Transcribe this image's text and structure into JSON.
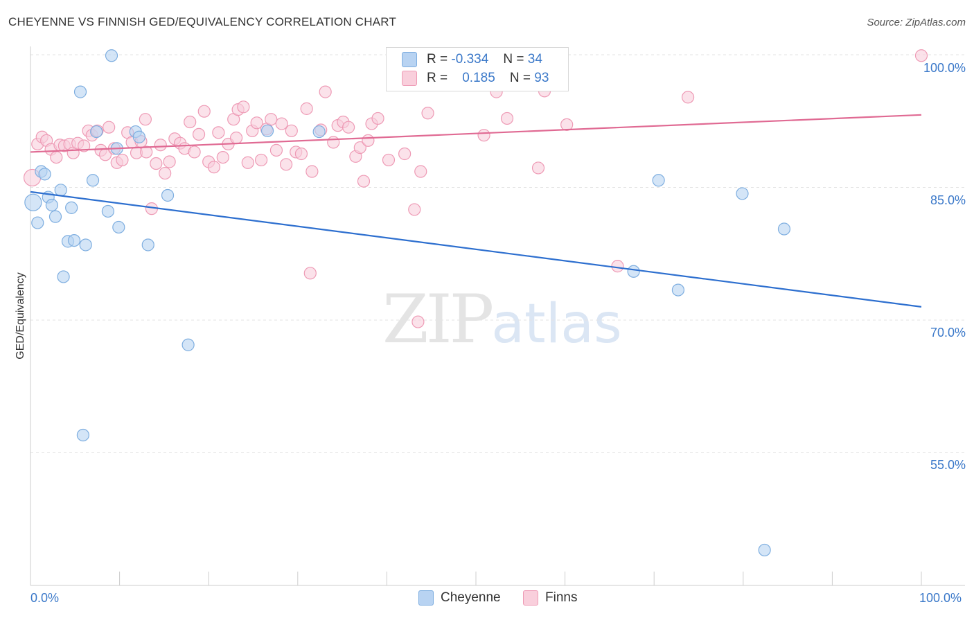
{
  "header": {
    "title": "CHEYENNE VS FINNISH GED/EQUIVALENCY CORRELATION CHART",
    "source": "Source: ZipAtlas.com"
  },
  "legend": {
    "r_label": "R =",
    "n_label": "N =",
    "cheyenne": {
      "r": "-0.334",
      "n": "34"
    },
    "finns": {
      "r": "0.185",
      "n": "93"
    }
  },
  "bottom_legend": {
    "cheyenne": "Cheyenne",
    "finns": "Finns"
  },
  "watermark": {
    "zip": "ZIP",
    "atlas": "atlas"
  },
  "colors": {
    "cheyenne_fill": "#b8d3f2",
    "cheyenne_stroke": "#7eaee0",
    "cheyenne_line": "#2d6fcf",
    "finns_fill": "#f9cfdc",
    "finns_stroke": "#ee9ab5",
    "finns_line": "#e06a93",
    "tick_text": "#3a78c9",
    "grid": "#e3e3e3"
  },
  "chart_data": {
    "type": "scatter",
    "title": "CHEYENNE VS FINNISH GED/EQUIVALENCY CORRELATION CHART",
    "xlabel": "",
    "ylabel": "GED/Equivalency",
    "xlim": [
      0,
      100
    ],
    "ylim": [
      40,
      101
    ],
    "x_tick_labels": [
      "0.0%",
      "100.0%"
    ],
    "y_ticks": [
      55,
      70,
      85,
      100
    ],
    "y_tick_labels": [
      "55.0%",
      "70.0%",
      "85.0%",
      "100.0%"
    ],
    "grid": true,
    "legend_position": "top-center",
    "series": [
      {
        "name": "Cheyenne",
        "trend": {
          "x": [
            0,
            100
          ],
          "y": [
            84.5,
            71.5
          ]
        },
        "points": [
          [
            0.3,
            83.3
          ],
          [
            0.8,
            81.0
          ],
          [
            1.2,
            86.8
          ],
          [
            1.6,
            86.5
          ],
          [
            2.0,
            83.9
          ],
          [
            2.4,
            83.0
          ],
          [
            2.8,
            81.7
          ],
          [
            3.4,
            84.7
          ],
          [
            3.7,
            74.9
          ],
          [
            4.2,
            78.9
          ],
          [
            4.6,
            82.7
          ],
          [
            4.9,
            79.0
          ],
          [
            5.6,
            95.8
          ],
          [
            6.2,
            78.5
          ],
          [
            7.0,
            85.8
          ],
          [
            7.4,
            91.3
          ],
          [
            8.7,
            82.3
          ],
          [
            9.1,
            99.9
          ],
          [
            9.7,
            89.4
          ],
          [
            9.9,
            80.5
          ],
          [
            11.8,
            91.3
          ],
          [
            12.2,
            90.7
          ],
          [
            13.2,
            78.5
          ],
          [
            15.4,
            84.1
          ],
          [
            17.7,
            67.2
          ],
          [
            26.6,
            91.4
          ],
          [
            32.4,
            91.3
          ],
          [
            70.5,
            85.8
          ],
          [
            67.7,
            75.5
          ],
          [
            72.7,
            73.4
          ],
          [
            79.9,
            84.3
          ],
          [
            84.6,
            80.3
          ],
          [
            82.4,
            44.0
          ],
          [
            5.9,
            57.0
          ]
        ]
      },
      {
        "name": "Finns",
        "trend": {
          "x": [
            0,
            100
          ],
          "y": [
            89.0,
            93.2
          ]
        },
        "points": [
          [
            0.2,
            86.1
          ],
          [
            0.8,
            89.9
          ],
          [
            1.3,
            90.7
          ],
          [
            1.8,
            90.3
          ],
          [
            2.3,
            89.3
          ],
          [
            2.9,
            88.4
          ],
          [
            3.3,
            89.8
          ],
          [
            3.8,
            89.7
          ],
          [
            4.4,
            89.9
          ],
          [
            4.8,
            88.9
          ],
          [
            5.3,
            90.0
          ],
          [
            6.0,
            89.7
          ],
          [
            6.5,
            91.4
          ],
          [
            6.9,
            90.9
          ],
          [
            7.5,
            91.4
          ],
          [
            7.9,
            89.2
          ],
          [
            8.4,
            88.7
          ],
          [
            8.8,
            91.8
          ],
          [
            9.4,
            89.4
          ],
          [
            9.7,
            87.8
          ],
          [
            10.3,
            88.1
          ],
          [
            10.9,
            91.2
          ],
          [
            11.4,
            90.1
          ],
          [
            11.9,
            88.9
          ],
          [
            12.4,
            90.2
          ],
          [
            12.9,
            92.7
          ],
          [
            13.6,
            82.6
          ],
          [
            14.1,
            87.7
          ],
          [
            14.6,
            89.8
          ],
          [
            15.1,
            86.6
          ],
          [
            15.6,
            87.9
          ],
          [
            16.2,
            90.5
          ],
          [
            16.8,
            90.0
          ],
          [
            17.3,
            89.4
          ],
          [
            17.9,
            92.4
          ],
          [
            18.4,
            89.0
          ],
          [
            18.9,
            91.0
          ],
          [
            19.5,
            93.6
          ],
          [
            20.0,
            87.9
          ],
          [
            20.6,
            87.3
          ],
          [
            21.1,
            91.2
          ],
          [
            21.6,
            88.4
          ],
          [
            22.2,
            89.9
          ],
          [
            22.8,
            92.7
          ],
          [
            23.3,
            93.8
          ],
          [
            23.9,
            94.1
          ],
          [
            24.4,
            87.8
          ],
          [
            24.9,
            91.4
          ],
          [
            25.4,
            92.3
          ],
          [
            25.9,
            88.1
          ],
          [
            26.5,
            91.6
          ],
          [
            27.0,
            92.7
          ],
          [
            27.6,
            89.2
          ],
          [
            28.2,
            92.2
          ],
          [
            28.7,
            87.6
          ],
          [
            29.3,
            91.4
          ],
          [
            29.8,
            89.0
          ],
          [
            30.4,
            88.8
          ],
          [
            31.0,
            93.9
          ],
          [
            31.6,
            86.8
          ],
          [
            32.6,
            91.5
          ],
          [
            33.1,
            95.8
          ],
          [
            34.0,
            90.1
          ],
          [
            34.5,
            92.0
          ],
          [
            35.1,
            92.4
          ],
          [
            35.7,
            91.8
          ],
          [
            36.5,
            88.5
          ],
          [
            37.0,
            89.5
          ],
          [
            37.4,
            85.7
          ],
          [
            37.9,
            90.3
          ],
          [
            38.3,
            92.2
          ],
          [
            39.0,
            92.8
          ],
          [
            40.2,
            88.1
          ],
          [
            41.1,
            98.4
          ],
          [
            42.0,
            88.8
          ],
          [
            43.1,
            82.5
          ],
          [
            43.8,
            86.8
          ],
          [
            44.6,
            93.4
          ],
          [
            31.4,
            75.3
          ],
          [
            43.5,
            69.8
          ],
          [
            50.9,
            90.9
          ],
          [
            52.3,
            95.8
          ],
          [
            53.5,
            92.8
          ],
          [
            56.0,
            99.9
          ],
          [
            57.0,
            87.2
          ],
          [
            57.7,
            95.9
          ],
          [
            59.4,
            99.9
          ],
          [
            60.2,
            92.1
          ],
          [
            65.9,
            76.1
          ],
          [
            73.8,
            95.2
          ],
          [
            100.0,
            99.9
          ],
          [
            13.0,
            89.0
          ],
          [
            23.1,
            90.6
          ]
        ]
      }
    ]
  }
}
